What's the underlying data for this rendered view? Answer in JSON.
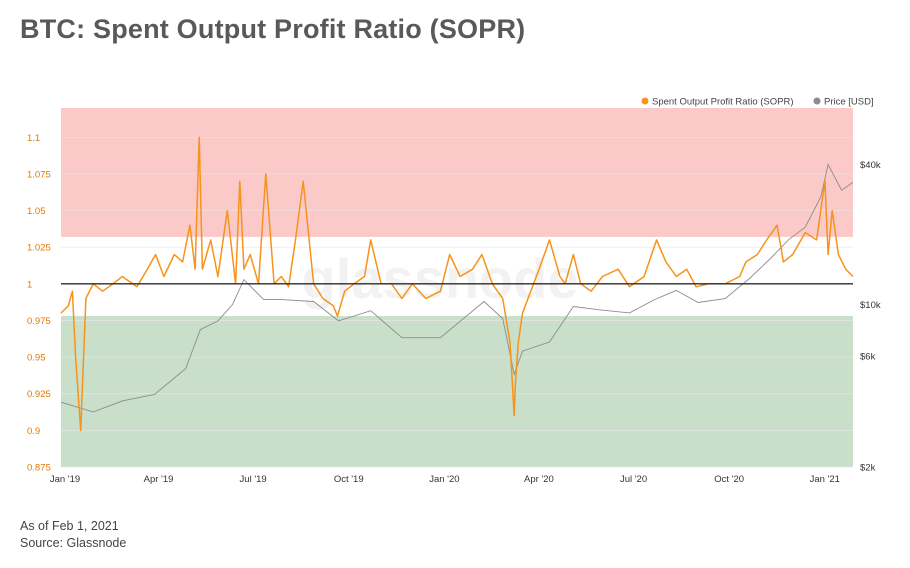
{
  "page": {
    "title": "BTC: Spent Output Profit Ratio (SOPR)",
    "as_of": "As of Feb 1, 2021",
    "source": "Source: Glassnode"
  },
  "chart_data": {
    "type": "line",
    "title": "BTC: Spent Output Profit Ratio (SOPR)",
    "watermark": "glassnode",
    "legend": {
      "position": "top-right",
      "entries": [
        {
          "name": "Spent Output Profit Ratio (SOPR)",
          "color": "#f7931a"
        },
        {
          "name": "Price [USD]",
          "color": "#8c8c8c"
        }
      ]
    },
    "x_ticks": [
      "Jan '19",
      "Apr '19",
      "Jul '19",
      "Oct '19",
      "Jan '20",
      "Apr '20",
      "Jul '20",
      "Oct '20",
      "Jan '21"
    ],
    "x_range": [
      "2019-01-01",
      "2021-02-01"
    ],
    "y_left": {
      "ticks": [
        "0.875",
        "0.9",
        "0.925",
        "0.95",
        "0.975",
        "1",
        "1.025",
        "1.05",
        "1.075",
        "1.1"
      ],
      "range": [
        0.875,
        1.12
      ],
      "color": "#e07b00"
    },
    "y_right": {
      "ticks": [
        "$2k",
        "$6k",
        "$10k",
        "$40k"
      ],
      "scale": "log",
      "range": [
        2000,
        70000
      ]
    },
    "bands": [
      {
        "name": "profit-zone",
        "from": 1.032,
        "to": 1.12,
        "color": "#fbc9c8"
      },
      {
        "name": "loss-zone",
        "from": 0.875,
        "to": 0.978,
        "color": "#c9dfc9"
      }
    ],
    "reference_line": 1,
    "series": [
      {
        "name": "Spent Output Profit Ratio (SOPR)",
        "color": "#f7931a",
        "x": [
          "2019-01-01",
          "2019-01-08",
          "2019-01-12",
          "2019-01-15",
          "2019-01-20",
          "2019-01-25",
          "2019-02-01",
          "2019-02-10",
          "2019-02-20",
          "2019-03-01",
          "2019-03-15",
          "2019-03-25",
          "2019-04-02",
          "2019-04-10",
          "2019-04-20",
          "2019-04-28",
          "2019-05-05",
          "2019-05-10",
          "2019-05-14",
          "2019-05-17",
          "2019-05-25",
          "2019-06-01",
          "2019-06-10",
          "2019-06-18",
          "2019-06-22",
          "2019-06-26",
          "2019-07-02",
          "2019-07-10",
          "2019-07-17",
          "2019-07-25",
          "2019-08-01",
          "2019-08-08",
          "2019-08-15",
          "2019-08-22",
          "2019-09-01",
          "2019-09-10",
          "2019-09-20",
          "2019-09-24",
          "2019-10-01",
          "2019-10-10",
          "2019-10-20",
          "2019-10-26",
          "2019-11-05",
          "2019-11-15",
          "2019-11-25",
          "2019-12-05",
          "2019-12-18",
          "2020-01-01",
          "2020-01-10",
          "2020-01-20",
          "2020-02-01",
          "2020-02-10",
          "2020-02-20",
          "2020-03-01",
          "2020-03-08",
          "2020-03-12",
          "2020-03-13",
          "2020-03-16",
          "2020-03-20",
          "2020-03-28",
          "2020-04-05",
          "2020-04-15",
          "2020-04-25",
          "2020-04-30",
          "2020-05-08",
          "2020-05-15",
          "2020-05-25",
          "2020-06-05",
          "2020-06-20",
          "2020-07-01",
          "2020-07-15",
          "2020-07-27",
          "2020-08-05",
          "2020-08-15",
          "2020-08-25",
          "2020-09-03",
          "2020-09-15",
          "2020-10-01",
          "2020-10-15",
          "2020-10-21",
          "2020-11-01",
          "2020-11-10",
          "2020-11-20",
          "2020-11-26",
          "2020-12-05",
          "2020-12-17",
          "2020-12-28",
          "2021-01-05",
          "2021-01-08",
          "2021-01-12",
          "2021-01-18",
          "2021-01-25",
          "2021-02-01"
        ],
        "values": [
          0.98,
          0.985,
          0.995,
          0.95,
          0.9,
          0.99,
          1.0,
          0.995,
          1.0,
          1.005,
          0.998,
          1.01,
          1.02,
          1.005,
          1.02,
          1.015,
          1.04,
          1.01,
          1.1,
          1.01,
          1.03,
          1.005,
          1.05,
          1.0,
          1.07,
          1.01,
          1.02,
          1.0,
          1.075,
          1.0,
          1.005,
          0.998,
          1.032,
          1.07,
          1.0,
          0.99,
          0.985,
          0.978,
          0.995,
          1.0,
          1.005,
          1.03,
          1.0,
          1.0,
          0.99,
          1.0,
          0.99,
          0.995,
          1.02,
          1.005,
          1.01,
          1.02,
          1.0,
          0.99,
          0.96,
          0.91,
          0.93,
          0.96,
          0.98,
          0.995,
          1.01,
          1.03,
          1.005,
          1.0,
          1.02,
          1.0,
          0.995,
          1.005,
          1.01,
          0.998,
          1.005,
          1.03,
          1.015,
          1.005,
          1.01,
          0.998,
          1.0,
          1.0,
          1.005,
          1.015,
          1.02,
          1.03,
          1.04,
          1.015,
          1.02,
          1.035,
          1.03,
          1.07,
          1.02,
          1.05,
          1.02,
          1.01,
          1.005
        ]
      },
      {
        "name": "Price [USD]",
        "color": "#8c8c8c",
        "x": [
          "2019-01-01",
          "2019-02-01",
          "2019-03-01",
          "2019-04-01",
          "2019-05-01",
          "2019-05-15",
          "2019-06-01",
          "2019-06-15",
          "2019-06-26",
          "2019-07-15",
          "2019-08-01",
          "2019-09-01",
          "2019-09-25",
          "2019-10-26",
          "2019-11-25",
          "2019-12-15",
          "2020-01-01",
          "2020-02-12",
          "2020-03-01",
          "2020-03-12",
          "2020-03-20",
          "2020-04-15",
          "2020-05-08",
          "2020-06-01",
          "2020-07-01",
          "2020-07-25",
          "2020-08-15",
          "2020-09-05",
          "2020-10-01",
          "2020-10-25",
          "2020-11-15",
          "2020-12-01",
          "2020-12-17",
          "2021-01-01",
          "2021-01-08",
          "2021-01-21",
          "2021-02-01"
        ],
        "values": [
          3800,
          3450,
          3850,
          4100,
          5300,
          7800,
          8500,
          10000,
          12800,
          10500,
          10500,
          10300,
          8500,
          9400,
          7200,
          7200,
          7200,
          10300,
          8700,
          5000,
          6300,
          6900,
          9800,
          9500,
          9200,
          10500,
          11500,
          10200,
          10600,
          13000,
          16000,
          19000,
          21500,
          29000,
          40000,
          31000,
          33500
        ]
      }
    ]
  }
}
